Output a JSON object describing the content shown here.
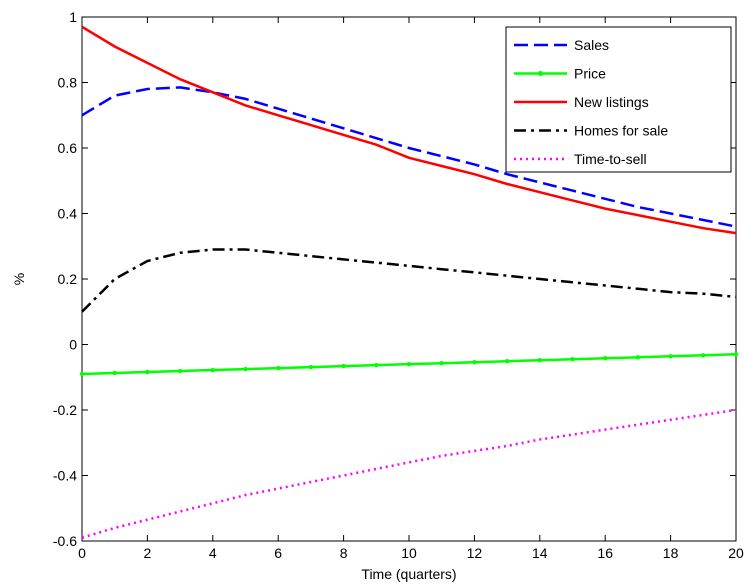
{
  "chart_data": {
    "type": "line",
    "xlabel": "Time (quarters)",
    "ylabel": "%",
    "xlim": [
      0,
      20
    ],
    "ylim": [
      -0.6,
      1
    ],
    "xticks": [
      0,
      2,
      4,
      6,
      8,
      10,
      12,
      14,
      16,
      18,
      20
    ],
    "yticks": [
      -0.6,
      -0.4,
      -0.2,
      0,
      0.2,
      0.4,
      0.6,
      0.8,
      1
    ],
    "ytick_labels": [
      "-0.6",
      "-0.4",
      "-0.2",
      "0",
      "0.2",
      "0.4",
      "0.6",
      "0.8",
      "1"
    ],
    "grid": false,
    "legend_position": "top-right",
    "x": [
      0,
      1,
      2,
      3,
      4,
      5,
      6,
      7,
      8,
      9,
      10,
      11,
      12,
      13,
      14,
      15,
      16,
      17,
      18,
      19,
      20
    ],
    "series": [
      {
        "name": "Sales",
        "color": "#0000ff",
        "style": "dashed",
        "values": [
          0.7,
          0.76,
          0.78,
          0.785,
          0.77,
          0.75,
          0.72,
          0.69,
          0.66,
          0.63,
          0.6,
          0.575,
          0.55,
          0.52,
          0.495,
          0.47,
          0.445,
          0.42,
          0.4,
          0.38,
          0.36
        ]
      },
      {
        "name": "Price",
        "color": "#00ff00",
        "style": "solid-marker",
        "values": [
          -0.09,
          -0.087,
          -0.084,
          -0.081,
          -0.078,
          -0.075,
          -0.072,
          -0.069,
          -0.066,
          -0.063,
          -0.06,
          -0.057,
          -0.054,
          -0.051,
          -0.048,
          -0.045,
          -0.042,
          -0.039,
          -0.036,
          -0.033,
          -0.03
        ]
      },
      {
        "name": "New listings",
        "color": "#ff0000",
        "style": "solid",
        "values": [
          0.97,
          0.91,
          0.86,
          0.81,
          0.77,
          0.73,
          0.7,
          0.67,
          0.64,
          0.61,
          0.57,
          0.545,
          0.52,
          0.49,
          0.465,
          0.44,
          0.415,
          0.395,
          0.375,
          0.355,
          0.34
        ]
      },
      {
        "name": "Homes for sale",
        "color": "#000000",
        "style": "dashdot",
        "values": [
          0.1,
          0.2,
          0.255,
          0.28,
          0.29,
          0.29,
          0.28,
          0.27,
          0.26,
          0.25,
          0.24,
          0.23,
          0.22,
          0.21,
          0.2,
          0.19,
          0.18,
          0.17,
          0.16,
          0.155,
          0.145
        ]
      },
      {
        "name": "Time-to-sell",
        "color": "#ff00ff",
        "style": "dotted",
        "values": [
          -0.59,
          -0.56,
          -0.535,
          -0.51,
          -0.485,
          -0.46,
          -0.44,
          -0.42,
          -0.4,
          -0.38,
          -0.36,
          -0.34,
          -0.325,
          -0.31,
          -0.29,
          -0.275,
          -0.26,
          -0.245,
          -0.23,
          -0.215,
          -0.2
        ]
      }
    ]
  }
}
